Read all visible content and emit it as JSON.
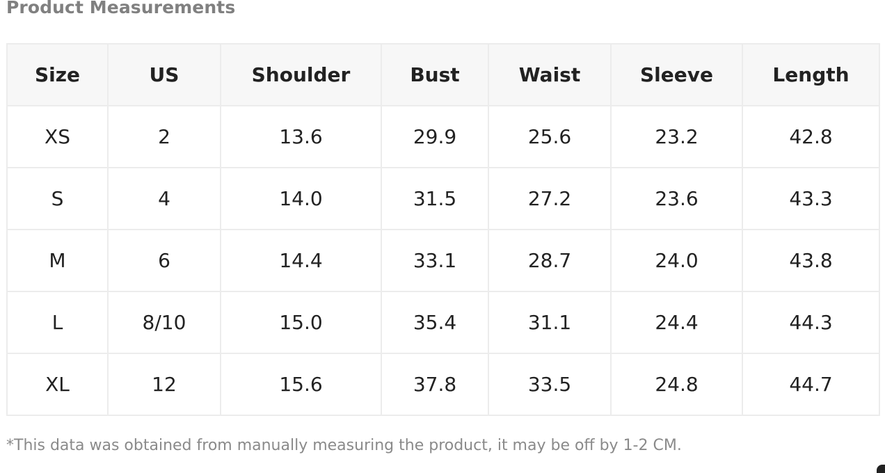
{
  "title": "Product Measurements",
  "table": {
    "headers": [
      "Size",
      "US",
      "Shoulder",
      "Bust",
      "Waist",
      "Sleeve",
      "Length"
    ],
    "rows": [
      [
        "XS",
        "2",
        "13.6",
        "29.9",
        "25.6",
        "23.2",
        "42.8"
      ],
      [
        "S",
        "4",
        "14.0",
        "31.5",
        "27.2",
        "23.6",
        "43.3"
      ],
      [
        "M",
        "6",
        "14.4",
        "33.1",
        "28.7",
        "24.0",
        "43.8"
      ],
      [
        "L",
        "8/10",
        "15.0",
        "35.4",
        "31.1",
        "24.4",
        "44.3"
      ],
      [
        "XL",
        "12",
        "15.6",
        "37.8",
        "33.5",
        "24.8",
        "44.7"
      ]
    ]
  },
  "footnote": "*This data was obtained from manually measuring the product, it may be off by 1-2 CM.",
  "colors": {
    "title": "#808080",
    "header_bg": "#f7f7f7",
    "border": "#ececec",
    "text": "#222222",
    "footnote": "#8a8a8a"
  }
}
